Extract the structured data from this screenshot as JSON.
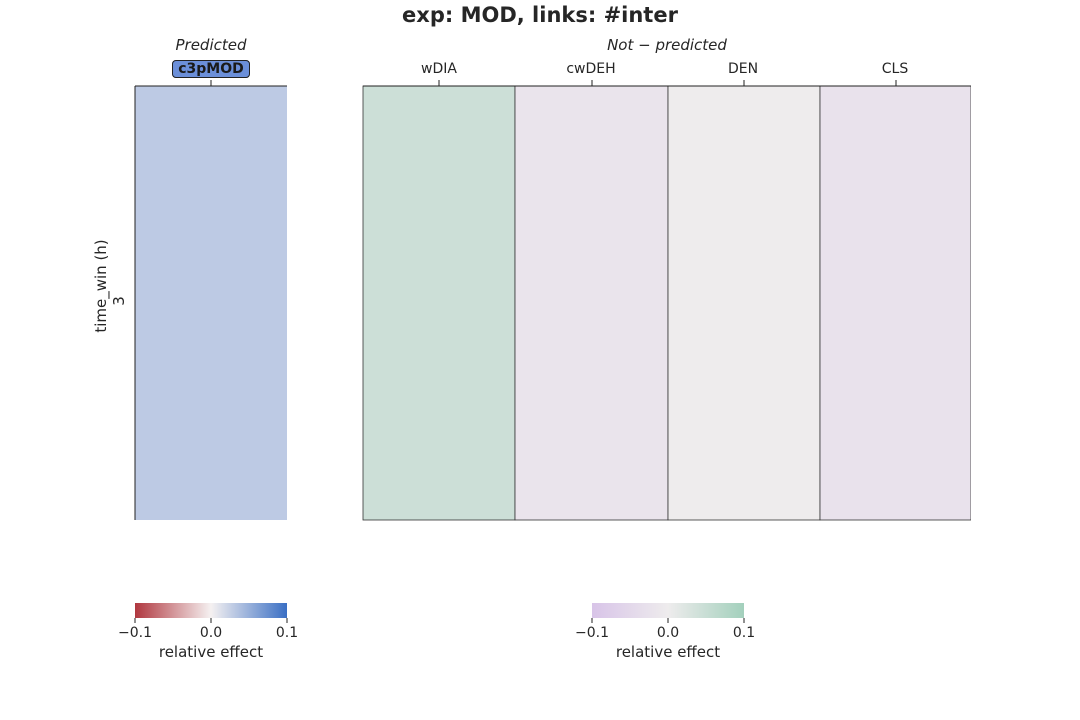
{
  "title": "exp: MOD, links: #inter",
  "chart_data": [
    {
      "type": "heatmap",
      "panel_title": "Predicted",
      "columns": [
        "c3pMOD"
      ],
      "highlighted_column": "c3pMOD",
      "rows": [
        "3"
      ],
      "ylabel": "time_win (h)",
      "values": [
        [
          0.03
        ]
      ],
      "colormap": {
        "low": "#b0373f",
        "mid": "#f5f1f1",
        "high": "#3a6fc4"
      },
      "colorbar": {
        "min": -0.1,
        "max": 0.1,
        "ticks": [
          "−0.1",
          "0.0",
          "0.1"
        ],
        "label": "relative effect"
      }
    },
    {
      "type": "heatmap",
      "panel_title": "Not − predicted",
      "columns": [
        "wDIA",
        "cwDEH",
        "DEN",
        "CLS"
      ],
      "rows": [
        "3"
      ],
      "values": [
        [
          0.045,
          -0.02,
          0.0,
          -0.025
        ]
      ],
      "colormap": {
        "low": "#d8c4e8",
        "mid": "#eeeced",
        "high": "#a3d0bc"
      },
      "colorbar": {
        "min": -0.1,
        "max": 0.1,
        "ticks": [
          "−0.1",
          "0.0",
          "0.1"
        ],
        "label": "relative effect"
      }
    }
  ]
}
